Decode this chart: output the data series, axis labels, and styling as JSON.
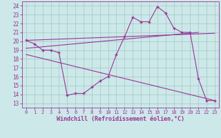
{
  "xlabel": "Windchill (Refroidissement éolien,°C)",
  "color": "#993399",
  "bg_color": "#cce8e8",
  "grid_color": "#aacccc",
  "xlim": [
    -0.5,
    23.5
  ],
  "ylim": [
    12.5,
    24.5
  ],
  "xticks": [
    0,
    1,
    2,
    3,
    4,
    5,
    6,
    7,
    8,
    9,
    10,
    11,
    12,
    13,
    14,
    15,
    16,
    17,
    18,
    19,
    20,
    21,
    22,
    23
  ],
  "yticks": [
    13,
    14,
    15,
    16,
    17,
    18,
    19,
    20,
    21,
    22,
    23,
    24
  ],
  "data_x": [
    0,
    1,
    2,
    3,
    4,
    5,
    6,
    7,
    8,
    9,
    10,
    11,
    12,
    13,
    14,
    15,
    16,
    17,
    18,
    19,
    20,
    21,
    22,
    23
  ],
  "data_y": [
    20.1,
    19.7,
    19.0,
    19.0,
    18.7,
    13.9,
    14.1,
    14.1,
    14.8,
    15.5,
    16.0,
    18.5,
    20.5,
    22.7,
    22.2,
    22.2,
    23.9,
    23.2,
    21.5,
    21.0,
    21.0,
    15.8,
    13.3,
    13.3
  ],
  "trend1_x": [
    0,
    23
  ],
  "trend1_y": [
    20.1,
    20.9
  ],
  "trend2_x": [
    0,
    21
  ],
  "trend2_y": [
    19.2,
    21.0
  ],
  "trend3_x": [
    0,
    23
  ],
  "trend3_y": [
    18.5,
    13.3
  ]
}
